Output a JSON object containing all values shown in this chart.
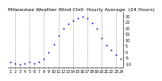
{
  "title": "Milwaukee Weather Wind Chill  Hourly Average  (24 Hours)",
  "hours": [
    1,
    2,
    3,
    4,
    5,
    6,
    7,
    8,
    9,
    10,
    11,
    12,
    13,
    14,
    15,
    16,
    17,
    18,
    19,
    20,
    21,
    22,
    23,
    24
  ],
  "wind_chill": [
    -9,
    -10,
    -11,
    -10,
    -9,
    -10,
    -9,
    -6,
    -1,
    6,
    13,
    19,
    23,
    26,
    28,
    29,
    28,
    24,
    19,
    11,
    5,
    1,
    -3,
    -6
  ],
  "ylim": [
    -13,
    33
  ],
  "ytick_values": [
    -10,
    -5,
    0,
    5,
    10,
    15,
    20,
    25,
    30
  ],
  "ytick_labels": [
    "-10",
    "-5",
    "0",
    "5",
    "10",
    "15",
    "20",
    "25",
    "30"
  ],
  "xtick_values": [
    1,
    2,
    3,
    4,
    5,
    6,
    7,
    8,
    9,
    10,
    11,
    12,
    13,
    14,
    15,
    16,
    17,
    18,
    19,
    20,
    21,
    22,
    23,
    24
  ],
  "grid_hours": [
    2,
    5,
    8,
    11,
    14,
    17,
    20,
    23
  ],
  "line_color": "#0000cc",
  "grid_color": "#888888",
  "background_color": "#ffffff",
  "title_fontsize": 4.5,
  "tick_fontsize": 3.5,
  "marker_size": 1.8
}
